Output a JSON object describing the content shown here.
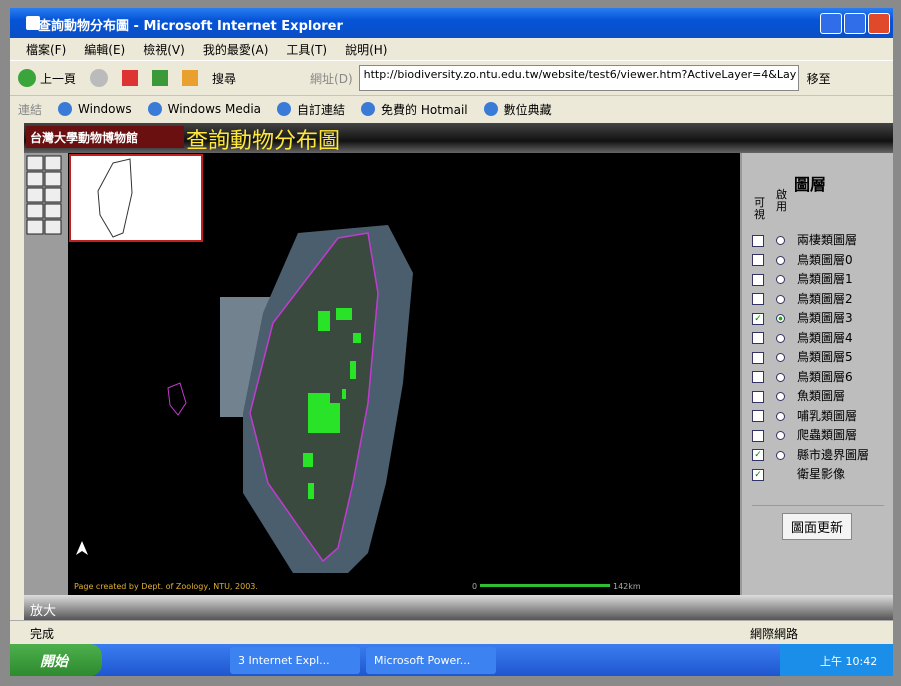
{
  "window": {
    "title": "查詢動物分布圖 - Microsoft Internet Explorer"
  },
  "menu": [
    "檔案(F)",
    "編輯(E)",
    "檢視(V)",
    "我的最愛(A)",
    "工具(T)",
    "說明(H)"
  ],
  "toolbar": {
    "back": "上一頁",
    "search": "搜尋",
    "address_label": "網址(D)",
    "address": "http://biodiversity.zo.ntu.edu.tw/website/test6/viewer.htm?ActiveLayer=4&Lay",
    "go": "移至"
  },
  "links": {
    "label": "連結",
    "items": [
      "Windows",
      "Windows Media",
      "自訂連結",
      "免費的 Hotmail",
      "數位典藏"
    ]
  },
  "banner": {
    "logo": "台灣大學動物博物館",
    "title": "查詢動物分布圖"
  },
  "map": {
    "credit": "Page created by Dept. of Zoology, NTU, 2003.",
    "scale_start": "0",
    "scale_end": "142km"
  },
  "panel": {
    "heading": "圖層",
    "col_visible": "可視",
    "col_active": "啟用",
    "button": "圖面更新",
    "layers": [
      {
        "name": "兩棲類圖層",
        "visible": false,
        "active": false,
        "radio": true
      },
      {
        "name": "鳥類圖層0",
        "visible": false,
        "active": false,
        "radio": true
      },
      {
        "name": "鳥類圖層1",
        "visible": false,
        "active": false,
        "radio": true
      },
      {
        "name": "鳥類圖層2",
        "visible": false,
        "active": false,
        "radio": true
      },
      {
        "name": "鳥類圖層3",
        "visible": true,
        "active": true,
        "radio": true
      },
      {
        "name": "鳥類圖層4",
        "visible": false,
        "active": false,
        "radio": true
      },
      {
        "name": "鳥類圖層5",
        "visible": false,
        "active": false,
        "radio": true
      },
      {
        "name": "鳥類圖層6",
        "visible": false,
        "active": false,
        "radio": true
      },
      {
        "name": "魚類圖層",
        "visible": false,
        "active": false,
        "radio": true
      },
      {
        "name": "哺乳類圖層",
        "visible": false,
        "active": false,
        "radio": true
      },
      {
        "name": "爬蟲類圖層",
        "visible": false,
        "active": false,
        "radio": true
      },
      {
        "name": "縣市邊界圖層",
        "visible": true,
        "active": false,
        "radio": true
      },
      {
        "name": "衛星影像",
        "visible": true,
        "active": false,
        "radio": false
      }
    ]
  },
  "bottom": {
    "tool": "放大"
  },
  "status": {
    "left": "完成",
    "right": "網際網路"
  },
  "taskbar": {
    "start": "開始",
    "tasks": [
      "3 Internet Expl...",
      "Microsoft Power..."
    ],
    "clock": "上午 10:42"
  }
}
